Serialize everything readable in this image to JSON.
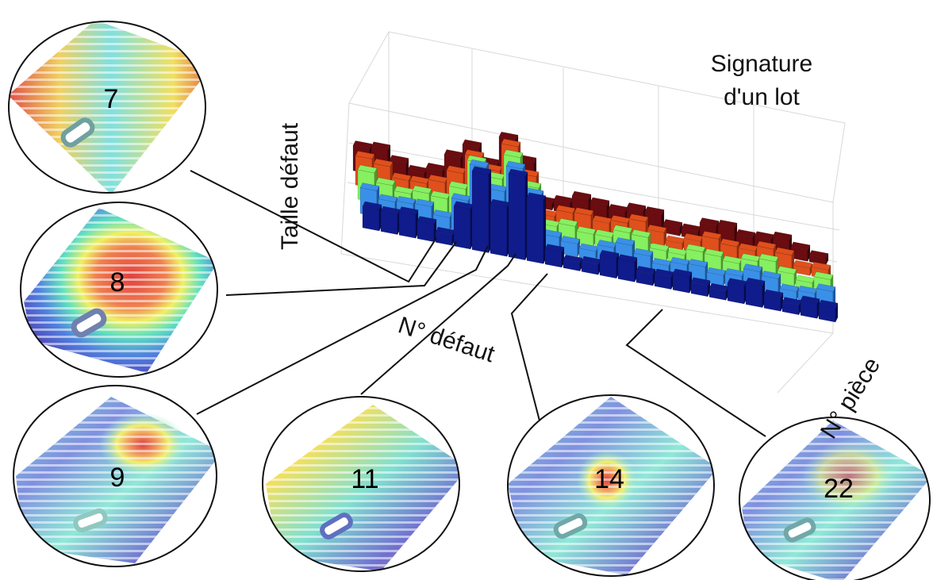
{
  "title": [
    "Signature",
    "d'un lot"
  ],
  "axes": {
    "z": "Taille défaut",
    "x": "N° défaut",
    "y": "N° pièce"
  },
  "insets": [
    {
      "label": 7
    },
    {
      "label": 8
    },
    {
      "label": 9
    },
    {
      "label": 11
    },
    {
      "label": 14
    },
    {
      "label": 22
    }
  ]
}
